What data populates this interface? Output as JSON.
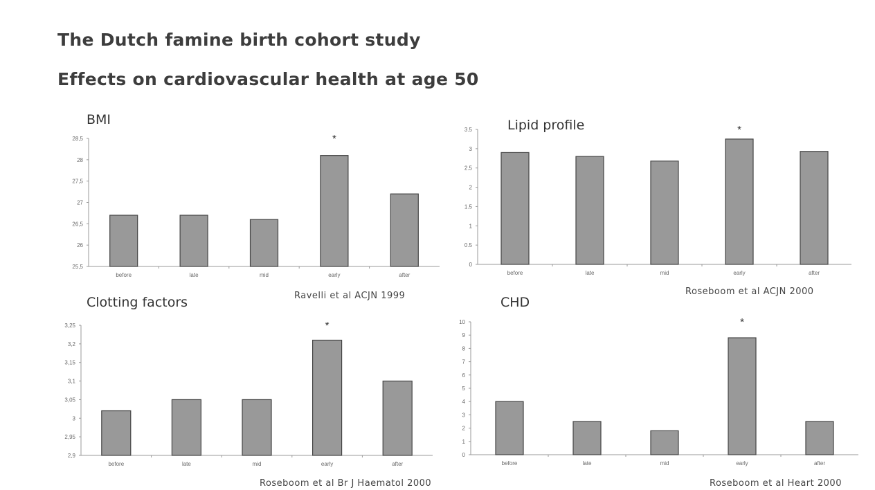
{
  "slide": {
    "title": "The Dutch famine birth cohort study",
    "subtitle": "Effects on cardiovascular health at age 50"
  },
  "colors": {
    "bar_fill": "#999999",
    "bar_stroke": "#444444",
    "axis": "#999999"
  },
  "chart_data": [
    {
      "type": "bar",
      "title": "BMI",
      "citation": "Ravelli et al ACJN 1999",
      "categories": [
        "before",
        "late",
        "mid",
        "early",
        "after"
      ],
      "values": [
        26.7,
        26.7,
        26.6,
        28.1,
        27.2
      ],
      "ylim": [
        25.5,
        28.5
      ],
      "yticks": [
        25.5,
        26,
        26.5,
        27,
        27.5,
        28,
        28.5
      ],
      "ytick_labels": [
        "25,5",
        "26",
        "26,5",
        "27",
        "27,5",
        "28",
        "28,5"
      ],
      "annotations": [
        {
          "category": "early",
          "text": "*"
        }
      ],
      "grid": false
    },
    {
      "type": "bar",
      "title": "Lipid profile",
      "citation": "Roseboom et al ACJN 2000",
      "categories": [
        "before",
        "late",
        "mid",
        "early",
        "after"
      ],
      "values": [
        2.9,
        2.8,
        2.68,
        3.25,
        2.93
      ],
      "ylim": [
        0,
        3.5
      ],
      "yticks": [
        0,
        0.5,
        1,
        1.5,
        2,
        2.5,
        3,
        3.5
      ],
      "ytick_labels": [
        "0",
        "0.5",
        "1",
        "1.5",
        "2",
        "2.5",
        "3",
        "3.5"
      ],
      "annotations": [
        {
          "category": "early",
          "text": "*"
        }
      ],
      "grid": false
    },
    {
      "type": "bar",
      "title": "Clotting factors",
      "citation": "Roseboom et al Br J Haematol 2000",
      "categories": [
        "before",
        "late",
        "mid",
        "early",
        "after"
      ],
      "values": [
        3.02,
        3.05,
        3.05,
        3.21,
        3.1
      ],
      "ylim": [
        2.9,
        3.25
      ],
      "yticks": [
        2.9,
        2.95,
        3,
        3.05,
        3.1,
        3.15,
        3.2,
        3.25
      ],
      "ytick_labels": [
        "2,9",
        "2,95",
        "3",
        "3,05",
        "3,1",
        "3,15",
        "3,2",
        "3,25"
      ],
      "annotations": [
        {
          "category": "early",
          "text": "*"
        }
      ],
      "grid": false
    },
    {
      "type": "bar",
      "title": "CHD",
      "citation": "Roseboom et al Heart 2000",
      "categories": [
        "before",
        "late",
        "mid",
        "early",
        "after"
      ],
      "values": [
        4,
        2.5,
        1.8,
        8.8,
        2.5
      ],
      "ylim": [
        0,
        10
      ],
      "yticks": [
        0,
        1,
        2,
        3,
        4,
        5,
        6,
        7,
        8,
        9,
        10
      ],
      "ytick_labels": [
        "0",
        "1",
        "2",
        "3",
        "4",
        "5",
        "6",
        "7",
        "8",
        "9",
        "10"
      ],
      "annotations": [
        {
          "category": "early",
          "text": "*"
        }
      ],
      "grid": false
    }
  ]
}
